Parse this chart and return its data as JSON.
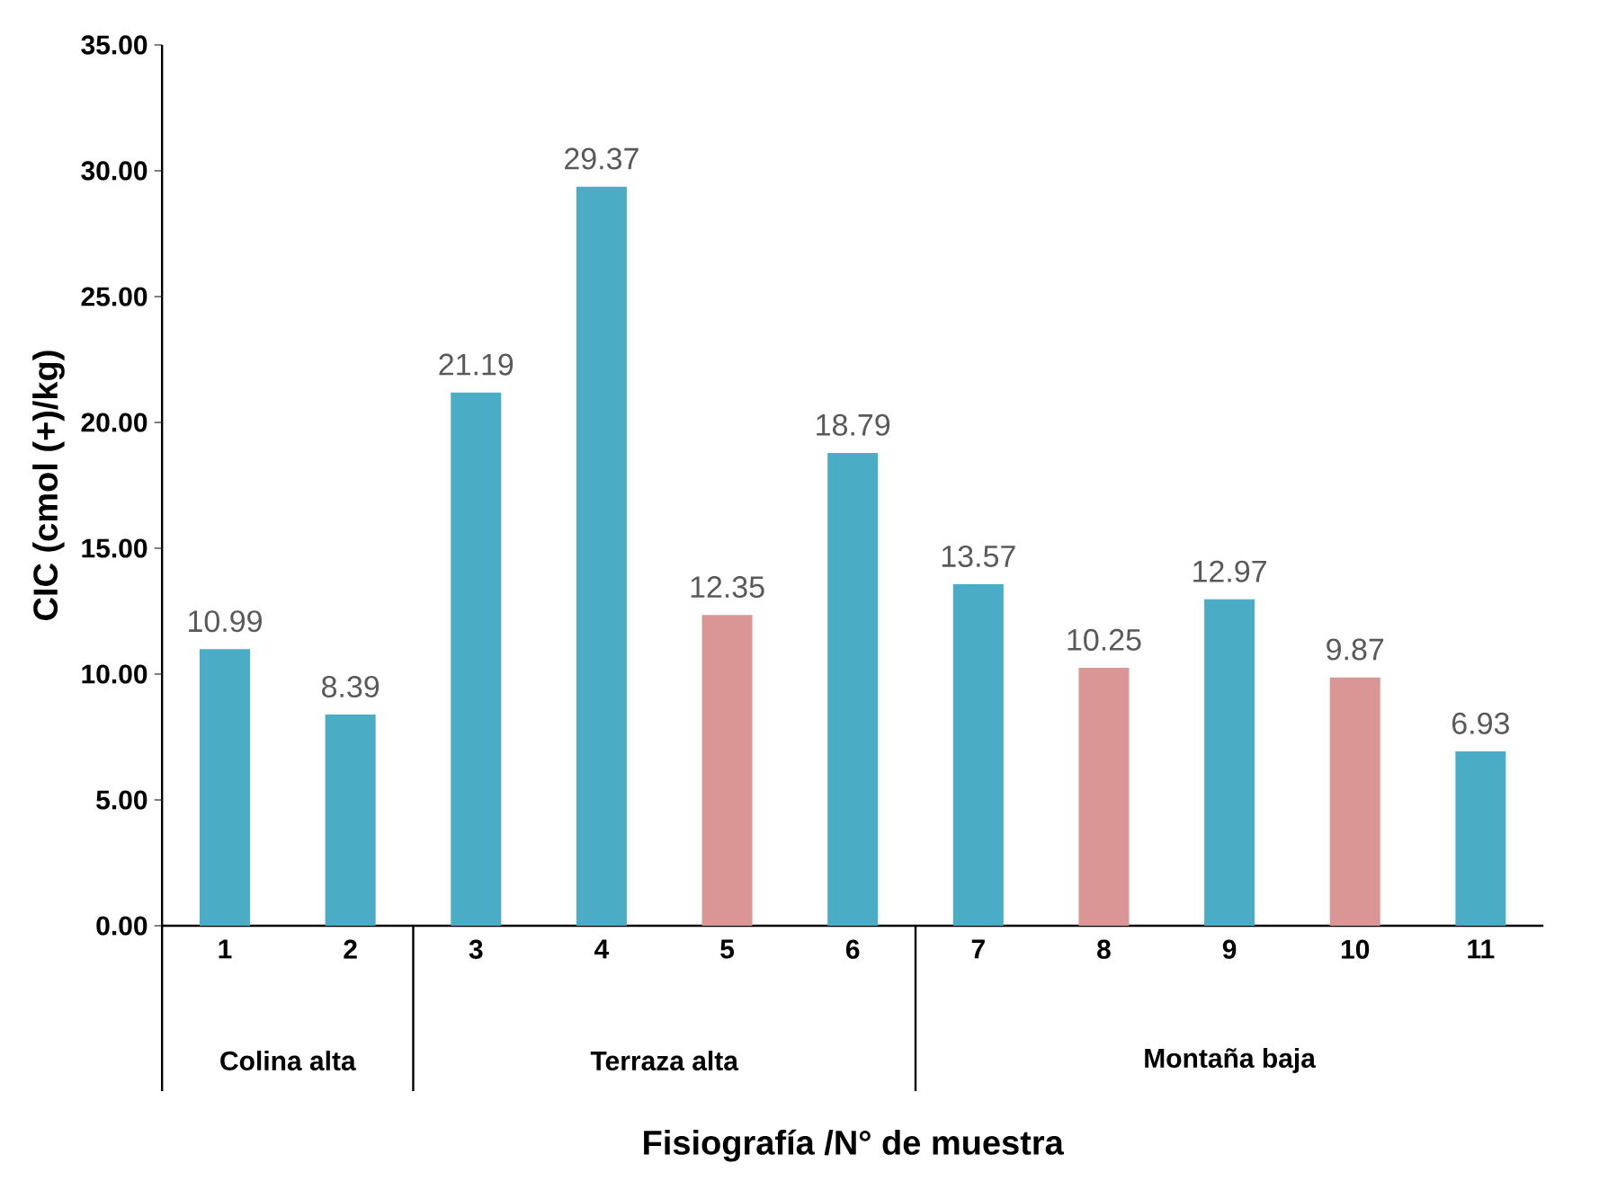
{
  "chart_data": {
    "type": "bar",
    "ylabel": "CIC (cmol (+)/kg)",
    "xlabel": "Fisiografía /N° de muestra",
    "categories": [
      "1",
      "2",
      "3",
      "4",
      "5",
      "6",
      "7",
      "8",
      "9",
      "10",
      "11"
    ],
    "values": [
      10.99,
      8.39,
      21.19,
      29.37,
      12.35,
      18.79,
      13.57,
      10.25,
      12.97,
      9.87,
      6.93
    ],
    "colors": [
      "#4bacc6",
      "#4bacc6",
      "#4bacc6",
      "#4bacc6",
      "#d99694",
      "#4bacc6",
      "#4bacc6",
      "#d99694",
      "#4bacc6",
      "#d99694",
      "#4bacc6"
    ],
    "data_labels": true,
    "ylim": [
      0,
      35
    ],
    "yticks": [
      {
        "value": 0,
        "label": "0.00"
      },
      {
        "value": 5,
        "label": "5.00"
      },
      {
        "value": 10,
        "label": "10.00"
      },
      {
        "value": 15,
        "label": "15.00"
      },
      {
        "value": 20,
        "label": "20.00"
      },
      {
        "value": 25,
        "label": "25.00"
      },
      {
        "value": 30,
        "label": "30.00"
      },
      {
        "value": 35,
        "label": "35.00"
      }
    ],
    "annotations": [
      "Colina alta",
      "Terraza alta",
      "Montaña baja"
    ]
  }
}
